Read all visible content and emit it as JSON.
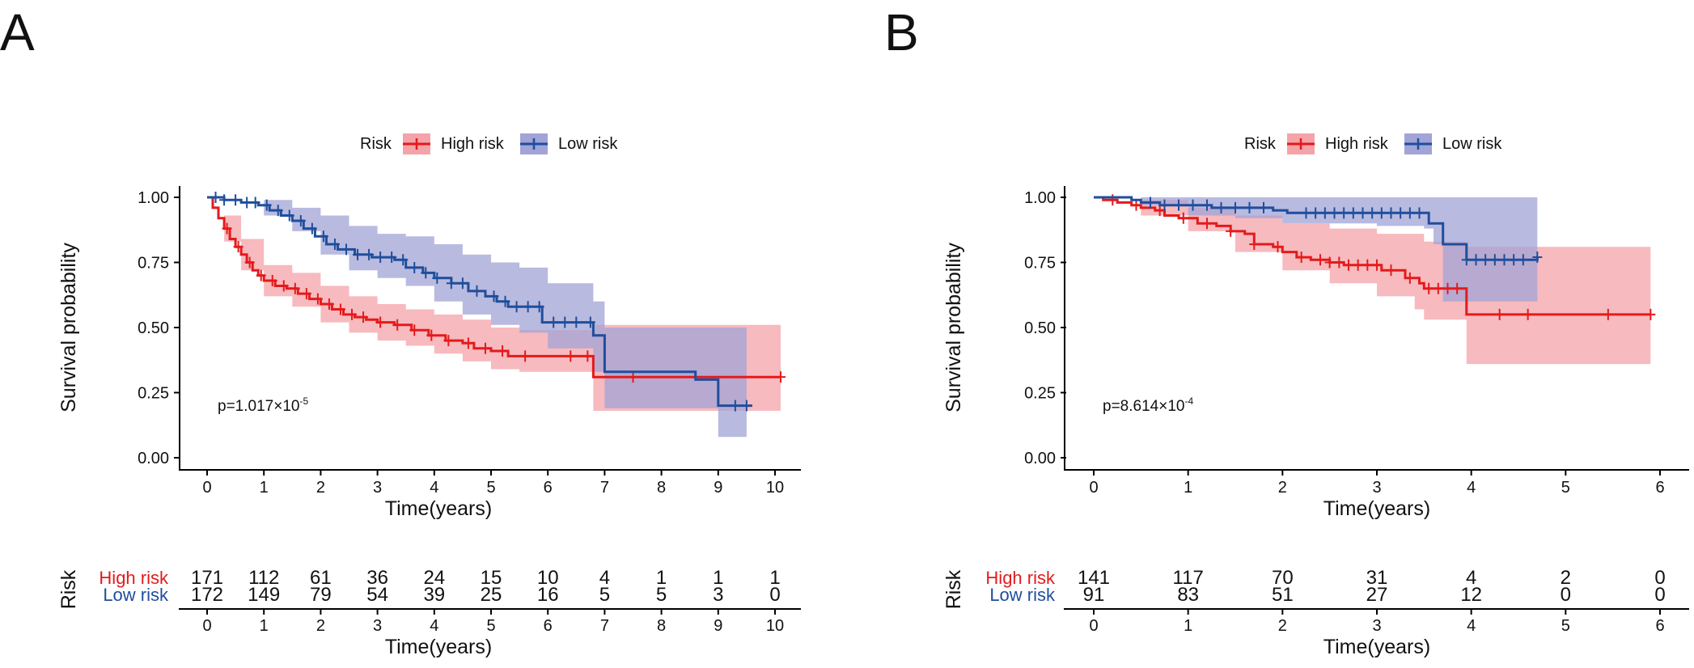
{
  "colors": {
    "high": "#E41A1C",
    "low": "#1F4E9C",
    "high_fill": "#F4A3A8",
    "low_fill": "#A2A3D6"
  },
  "chart_data": [
    {
      "panel": "A",
      "type": "line",
      "subtype": "kaplan-meier",
      "legend_title": "Risk",
      "legend_placement": "top",
      "xlabel": "Time(years)",
      "ylabel": "Survival probability",
      "xlim": [
        0,
        10
      ],
      "ylim": [
        0,
        1
      ],
      "xticks": [
        0,
        1,
        2,
        3,
        4,
        5,
        6,
        7,
        8,
        9,
        10
      ],
      "yticks": [
        0,
        0.25,
        0.5,
        0.75,
        1
      ],
      "ytick_labels": [
        "0.00",
        "0.25",
        "0.50",
        "0.75",
        "1.00"
      ],
      "pvalue": {
        "prefix": "p=",
        "mantissa": "1.017",
        "times": "×10",
        "exponent": "-5"
      },
      "series": [
        {
          "name": "High risk",
          "color_key": "high",
          "steps": [
            [
              0,
              1
            ],
            [
              0.1,
              0.96
            ],
            [
              0.2,
              0.92
            ],
            [
              0.3,
              0.88
            ],
            [
              0.4,
              0.84
            ],
            [
              0.5,
              0.81
            ],
            [
              0.6,
              0.78
            ],
            [
              0.7,
              0.75
            ],
            [
              0.8,
              0.72
            ],
            [
              0.9,
              0.7
            ],
            [
              1,
              0.68
            ],
            [
              1.2,
              0.66
            ],
            [
              1.4,
              0.65
            ],
            [
              1.6,
              0.63
            ],
            [
              1.8,
              0.61
            ],
            [
              2,
              0.59
            ],
            [
              2.2,
              0.57
            ],
            [
              2.4,
              0.55
            ],
            [
              2.6,
              0.54
            ],
            [
              2.8,
              0.53
            ],
            [
              3,
              0.52
            ],
            [
              3.3,
              0.51
            ],
            [
              3.6,
              0.49
            ],
            [
              3.9,
              0.47
            ],
            [
              4.2,
              0.45
            ],
            [
              4.5,
              0.44
            ],
            [
              4.7,
              0.42
            ],
            [
              5,
              0.41
            ],
            [
              5.3,
              0.39
            ],
            [
              6.8,
              0.38
            ],
            [
              6.8,
              0.31
            ],
            [
              10.1,
              0.31
            ]
          ],
          "ci_upper": [
            [
              0,
              1
            ],
            [
              0.3,
              0.93
            ],
            [
              0.6,
              0.84
            ],
            [
              1,
              0.74
            ],
            [
              1.5,
              0.71
            ],
            [
              2,
              0.66
            ],
            [
              2.5,
              0.62
            ],
            [
              3,
              0.59
            ],
            [
              3.5,
              0.57
            ],
            [
              4,
              0.55
            ],
            [
              4.5,
              0.53
            ],
            [
              5,
              0.5
            ],
            [
              5.5,
              0.49
            ],
            [
              6.8,
              0.48
            ],
            [
              6.8,
              0.51
            ],
            [
              10.1,
              0.51
            ]
          ],
          "ci_lower": [
            [
              0,
              1
            ],
            [
              0.3,
              0.83
            ],
            [
              0.6,
              0.72
            ],
            [
              1,
              0.62
            ],
            [
              1.5,
              0.58
            ],
            [
              2,
              0.52
            ],
            [
              2.5,
              0.48
            ],
            [
              3,
              0.45
            ],
            [
              3.5,
              0.43
            ],
            [
              4,
              0.4
            ],
            [
              4.5,
              0.37
            ],
            [
              5,
              0.34
            ],
            [
              5.5,
              0.33
            ],
            [
              6.8,
              0.32
            ],
            [
              6.8,
              0.18
            ],
            [
              10.1,
              0.18
            ]
          ],
          "censor": [
            0.35,
            0.55,
            0.75,
            0.95,
            1.15,
            1.35,
            1.55,
            1.75,
            1.95,
            2.15,
            2.35,
            2.55,
            2.75,
            3.05,
            3.35,
            3.65,
            3.95,
            4.25,
            4.6,
            4.9,
            5.2,
            5.6,
            6.4,
            6.7,
            7.5,
            10.1
          ]
        },
        {
          "name": "Low risk",
          "color_key": "low",
          "steps": [
            [
              0,
              1
            ],
            [
              0.3,
              0.99
            ],
            [
              0.6,
              0.98
            ],
            [
              0.9,
              0.97
            ],
            [
              1.1,
              0.95
            ],
            [
              1.3,
              0.93
            ],
            [
              1.5,
              0.91
            ],
            [
              1.7,
              0.88
            ],
            [
              1.9,
              0.85
            ],
            [
              2.1,
              0.82
            ],
            [
              2.3,
              0.8
            ],
            [
              2.6,
              0.78
            ],
            [
              2.9,
              0.77
            ],
            [
              3.3,
              0.76
            ],
            [
              3.5,
              0.73
            ],
            [
              3.8,
              0.71
            ],
            [
              4,
              0.69
            ],
            [
              4.3,
              0.67
            ],
            [
              4.6,
              0.64
            ],
            [
              4.9,
              0.62
            ],
            [
              5.1,
              0.6
            ],
            [
              5.3,
              0.58
            ],
            [
              5.9,
              0.52
            ],
            [
              6.8,
              0.47
            ],
            [
              7,
              0.33
            ],
            [
              8.6,
              0.3
            ],
            [
              9,
              0.2
            ],
            [
              9.6,
              0.2
            ]
          ],
          "ci_upper": [
            [
              0,
              1
            ],
            [
              1,
              0.99
            ],
            [
              1.5,
              0.96
            ],
            [
              2,
              0.93
            ],
            [
              2.5,
              0.89
            ],
            [
              3,
              0.86
            ],
            [
              3.5,
              0.85
            ],
            [
              4,
              0.82
            ],
            [
              4.5,
              0.78
            ],
            [
              5,
              0.75
            ],
            [
              5.5,
              0.73
            ],
            [
              6,
              0.67
            ],
            [
              6.8,
              0.6
            ],
            [
              7,
              0.5
            ],
            [
              9,
              0.5
            ],
            [
              9.5,
              0.49
            ]
          ],
          "ci_lower": [
            [
              0,
              1
            ],
            [
              1,
              0.93
            ],
            [
              1.5,
              0.87
            ],
            [
              2,
              0.78
            ],
            [
              2.5,
              0.72
            ],
            [
              3,
              0.69
            ],
            [
              3.5,
              0.66
            ],
            [
              4,
              0.6
            ],
            [
              4.5,
              0.55
            ],
            [
              5,
              0.51
            ],
            [
              5.5,
              0.48
            ],
            [
              6,
              0.42
            ],
            [
              6.8,
              0.33
            ],
            [
              7,
              0.19
            ],
            [
              9,
              0.08
            ],
            [
              9.5,
              0.08
            ]
          ],
          "censor": [
            0.15,
            0.3,
            0.5,
            0.7,
            0.85,
            1.05,
            1.25,
            1.45,
            1.65,
            1.85,
            2.05,
            2.25,
            2.45,
            2.65,
            2.85,
            3.05,
            3.25,
            3.45,
            3.65,
            3.85,
            4.05,
            4.3,
            4.5,
            4.75,
            5.05,
            5.25,
            5.45,
            5.65,
            5.85,
            6.1,
            6.3,
            6.5,
            6.75,
            9.3,
            9.5
          ]
        }
      ],
      "risk_table": {
        "title": "Risk",
        "xlabel": "Time(years)",
        "times": [
          0,
          1,
          2,
          3,
          4,
          5,
          6,
          7,
          8,
          9,
          10
        ],
        "rows": [
          {
            "label": "High risk",
            "color_key": "high",
            "counts": [
              171,
              112,
              61,
              36,
              24,
              15,
              10,
              4,
              1,
              1,
              1
            ]
          },
          {
            "label": "Low risk",
            "color_key": "low",
            "counts": [
              172,
              149,
              79,
              54,
              39,
              25,
              16,
              5,
              5,
              3,
              0
            ]
          }
        ]
      }
    },
    {
      "panel": "B",
      "type": "line",
      "subtype": "kaplan-meier",
      "legend_title": "Risk",
      "legend_placement": "top",
      "xlabel": "Time(years)",
      "ylabel": "Survival probability",
      "xlim": [
        0,
        6
      ],
      "ylim": [
        0,
        1
      ],
      "xticks": [
        0,
        1,
        2,
        3,
        4,
        5,
        6
      ],
      "yticks": [
        0,
        0.25,
        0.5,
        0.75,
        1
      ],
      "ytick_labels": [
        "0.00",
        "0.25",
        "0.50",
        "0.75",
        "1.00"
      ],
      "pvalue": {
        "prefix": "p=",
        "mantissa": "8.614",
        "times": "×10",
        "exponent": "-4"
      },
      "series": [
        {
          "name": "High risk",
          "color_key": "high",
          "steps": [
            [
              0,
              1
            ],
            [
              0.1,
              0.99
            ],
            [
              0.25,
              0.98
            ],
            [
              0.4,
              0.97
            ],
            [
              0.5,
              0.96
            ],
            [
              0.65,
              0.95
            ],
            [
              0.75,
              0.93
            ],
            [
              0.9,
              0.92
            ],
            [
              1.1,
              0.9
            ],
            [
              1.3,
              0.89
            ],
            [
              1.45,
              0.87
            ],
            [
              1.6,
              0.86
            ],
            [
              1.7,
              0.82
            ],
            [
              1.9,
              0.81
            ],
            [
              2,
              0.79
            ],
            [
              2.15,
              0.77
            ],
            [
              2.3,
              0.76
            ],
            [
              2.5,
              0.75
            ],
            [
              2.65,
              0.74
            ],
            [
              3.05,
              0.72
            ],
            [
              3.3,
              0.69
            ],
            [
              3.45,
              0.67
            ],
            [
              3.5,
              0.65
            ],
            [
              3.95,
              0.55
            ],
            [
              5.9,
              0.55
            ]
          ],
          "ci_upper": [
            [
              0,
              1
            ],
            [
              0.5,
              0.99
            ],
            [
              1,
              0.96
            ],
            [
              1.5,
              0.93
            ],
            [
              2,
              0.9
            ],
            [
              2.5,
              0.88
            ],
            [
              3,
              0.86
            ],
            [
              3.5,
              0.83
            ],
            [
              3.95,
              0.81
            ],
            [
              5.9,
              0.81
            ]
          ],
          "ci_lower": [
            [
              0,
              1
            ],
            [
              0.5,
              0.93
            ],
            [
              1,
              0.87
            ],
            [
              1.5,
              0.79
            ],
            [
              2,
              0.72
            ],
            [
              2.5,
              0.67
            ],
            [
              3,
              0.62
            ],
            [
              3.4,
              0.57
            ],
            [
              3.5,
              0.53
            ],
            [
              3.95,
              0.36
            ],
            [
              5.9,
              0.36
            ]
          ],
          "censor": [
            0.2,
            0.45,
            0.7,
            0.95,
            1.2,
            1.45,
            1.7,
            1.95,
            2.2,
            2.4,
            2.5,
            2.6,
            2.7,
            2.8,
            2.9,
            3.0,
            3.15,
            3.35,
            3.55,
            3.65,
            3.75,
            3.85,
            4.3,
            4.6,
            5.45,
            5.9
          ]
        },
        {
          "name": "Low risk",
          "color_key": "low",
          "steps": [
            [
              0,
              1
            ],
            [
              0.4,
              0.99
            ],
            [
              0.5,
              0.98
            ],
            [
              0.7,
              0.97
            ],
            [
              1.25,
              0.96
            ],
            [
              1.9,
              0.95
            ],
            [
              2.05,
              0.94
            ],
            [
              3.5,
              0.94
            ],
            [
              3.55,
              0.9
            ],
            [
              3.7,
              0.82
            ],
            [
              3.95,
              0.76
            ],
            [
              4.7,
              0.77
            ]
          ],
          "ci_upper": [
            [
              0,
              1
            ],
            [
              1,
              1
            ],
            [
              2,
              1
            ],
            [
              3,
              1
            ],
            [
              3.5,
              1
            ],
            [
              3.7,
              1
            ],
            [
              4.7,
              0.97
            ]
          ],
          "ci_lower": [
            [
              0,
              1
            ],
            [
              0.5,
              0.97
            ],
            [
              1,
              0.93
            ],
            [
              1.5,
              0.92
            ],
            [
              2,
              0.9
            ],
            [
              3,
              0.89
            ],
            [
              3.5,
              0.88
            ],
            [
              3.6,
              0.82
            ],
            [
              3.7,
              0.6
            ],
            [
              4.7,
              0.6
            ]
          ],
          "censor": [
            0.6,
            0.75,
            0.9,
            1.05,
            1.2,
            1.35,
            1.5,
            1.65,
            1.8,
            2.25,
            2.35,
            2.45,
            2.55,
            2.65,
            2.75,
            2.85,
            2.95,
            3.05,
            3.15,
            3.25,
            3.35,
            3.45,
            3.95,
            4.05,
            4.15,
            4.25,
            4.35,
            4.45,
            4.55,
            4.7
          ]
        }
      ],
      "risk_table": {
        "title": "Risk",
        "xlabel": "Time(years)",
        "times": [
          0,
          1,
          2,
          3,
          4,
          5,
          6
        ],
        "rows": [
          {
            "label": "High risk",
            "color_key": "high",
            "counts": [
              141,
              117,
              70,
              31,
              4,
              2,
              0
            ]
          },
          {
            "label": "Low risk",
            "color_key": "low",
            "counts": [
              91,
              83,
              51,
              27,
              12,
              0,
              0
            ]
          }
        ]
      }
    }
  ]
}
